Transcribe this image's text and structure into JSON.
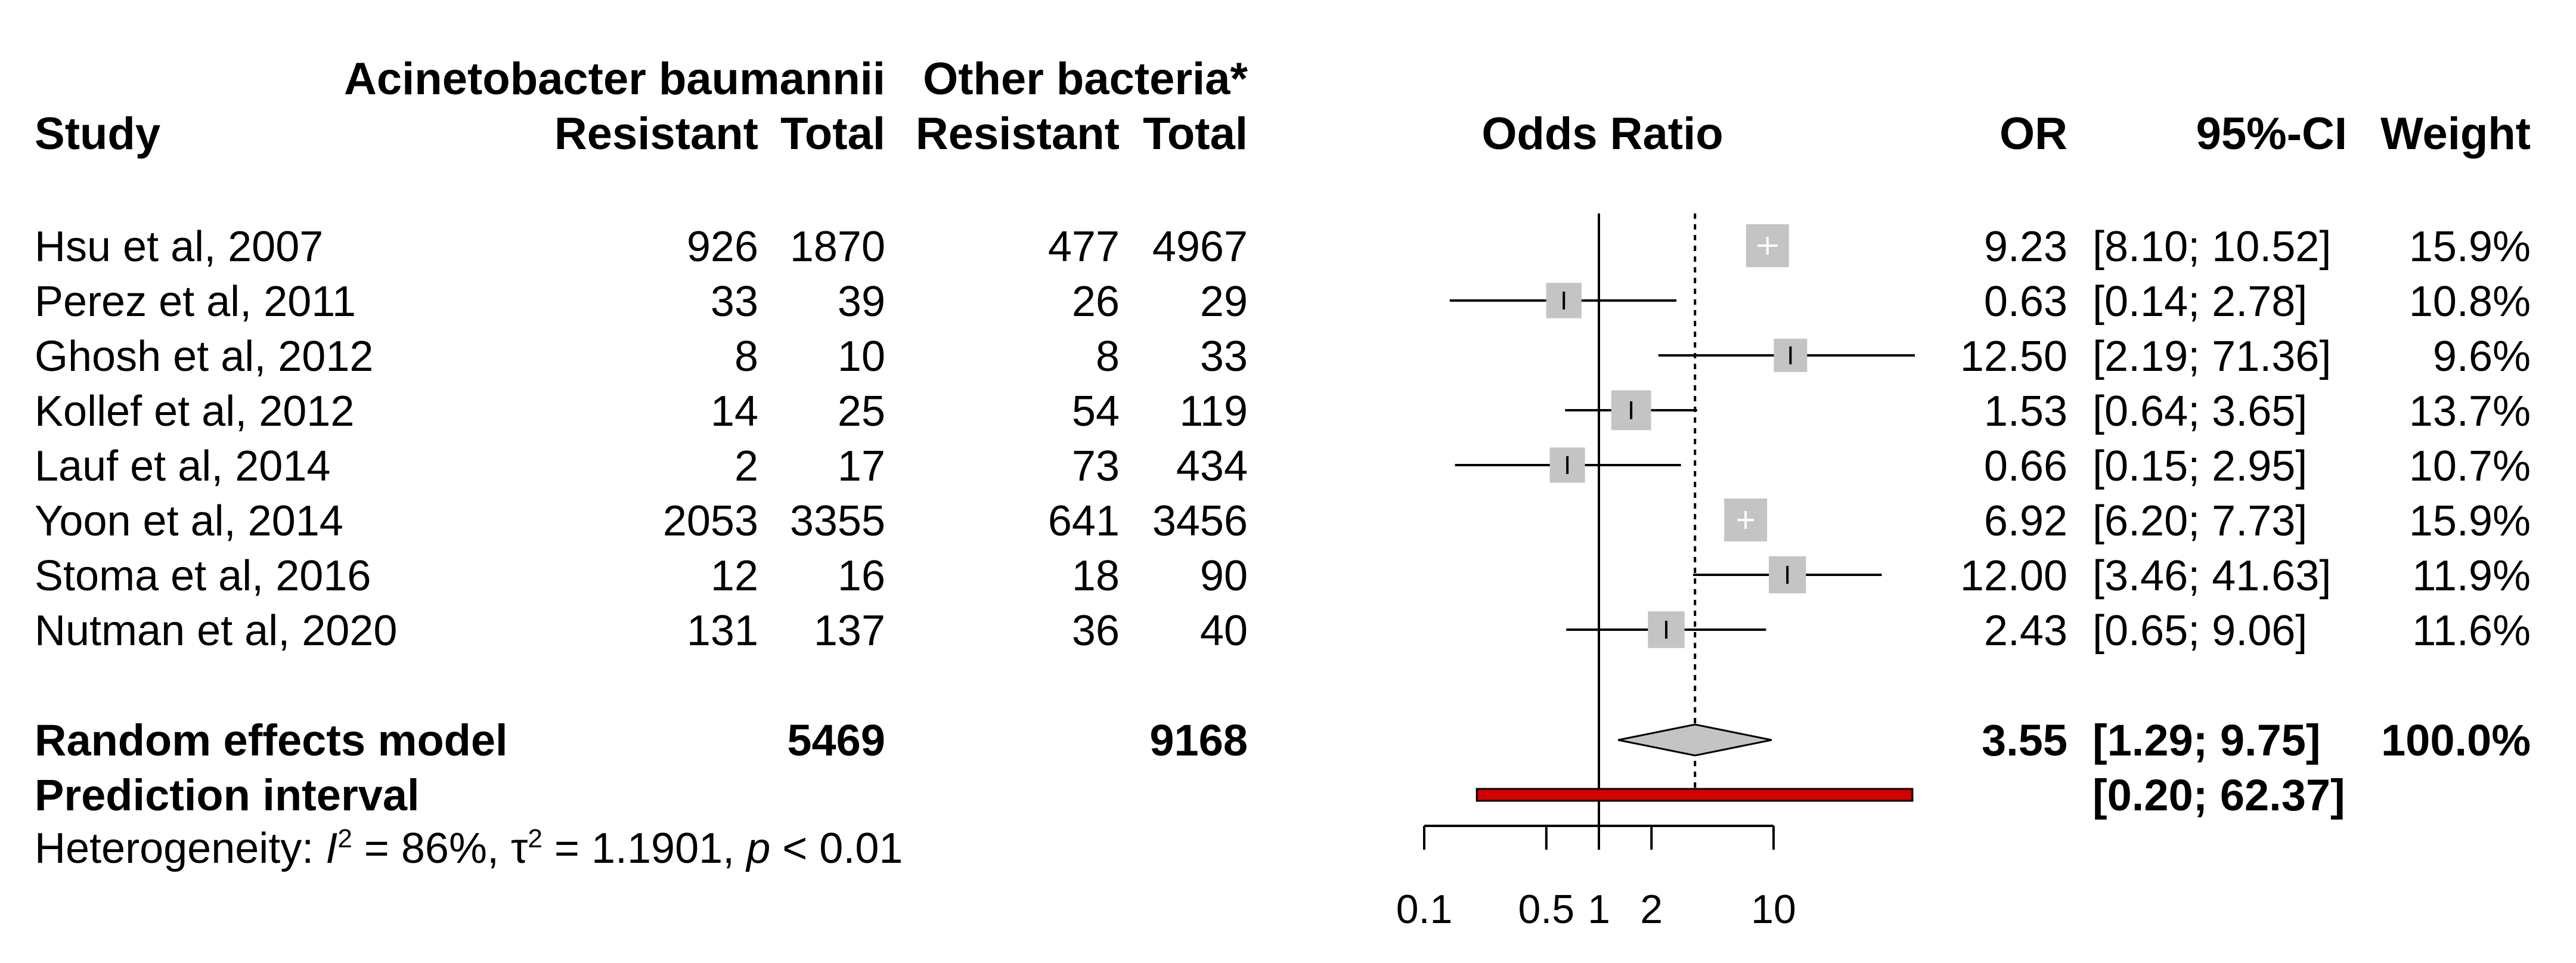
{
  "chart_data": {
    "type": "forest",
    "title": "",
    "xlabel": "Odds Ratio",
    "x_scale": "log",
    "xlim": [
      0.1,
      10
    ],
    "x_ticks": [
      0.1,
      0.5,
      1,
      2,
      10
    ],
    "x_tick_labels": [
      "0.1",
      "0.5",
      "1",
      "2",
      "10"
    ],
    "group_headers": {
      "acinetobacter": "Acinetobacter baumannii",
      "other": "Other bacteria*"
    },
    "column_headers": {
      "study": "Study",
      "ab_resistant": "Resistant",
      "ab_total": "Total",
      "ob_resistant": "Resistant",
      "ob_total": "Total",
      "or": "OR",
      "ci": "95%-CI",
      "weight": "Weight"
    },
    "studies": [
      {
        "study": "Hsu et al, 2007",
        "ab_resistant": "926",
        "ab_total": "1870",
        "ob_resistant": "477",
        "ob_total": "4967",
        "or": 9.23,
        "lower": 8.1,
        "upper": 10.52,
        "or_text": "9.23",
        "ci_text": "[8.10; 10.52]",
        "weight": 15.9,
        "weight_text": "15.9%"
      },
      {
        "study": "Perez et al, 2011",
        "ab_resistant": "33",
        "ab_total": "39",
        "ob_resistant": "26",
        "ob_total": "29",
        "or": 0.63,
        "lower": 0.14,
        "upper": 2.78,
        "or_text": "0.63",
        "ci_text": "[0.14; 2.78]",
        "weight": 10.8,
        "weight_text": "10.8%"
      },
      {
        "study": "Ghosh et al, 2012",
        "ab_resistant": "8",
        "ab_total": "10",
        "ob_resistant": "8",
        "ob_total": "33",
        "or": 12.5,
        "lower": 2.19,
        "upper": 71.36,
        "or_text": "12.50",
        "ci_text": "[2.19; 71.36]",
        "weight": 9.6,
        "weight_text": "9.6%"
      },
      {
        "study": "Kollef et al, 2012",
        "ab_resistant": "14",
        "ab_total": "25",
        "ob_resistant": "54",
        "ob_total": "119",
        "or": 1.53,
        "lower": 0.64,
        "upper": 3.65,
        "or_text": "1.53",
        "ci_text": "[0.64; 3.65]",
        "weight": 13.7,
        "weight_text": "13.7%"
      },
      {
        "study": "Lauf et al, 2014",
        "ab_resistant": "2",
        "ab_total": "17",
        "ob_resistant": "73",
        "ob_total": "434",
        "or": 0.66,
        "lower": 0.15,
        "upper": 2.95,
        "or_text": "0.66",
        "ci_text": "[0.15; 2.95]",
        "weight": 10.7,
        "weight_text": "10.7%"
      },
      {
        "study": "Yoon et al, 2014",
        "ab_resistant": "2053",
        "ab_total": "3355",
        "ob_resistant": "641",
        "ob_total": "3456",
        "or": 6.92,
        "lower": 6.2,
        "upper": 7.73,
        "or_text": "6.92",
        "ci_text": "[6.20; 7.73]",
        "weight": 15.9,
        "weight_text": "15.9%"
      },
      {
        "study": "Stoma et al, 2016",
        "ab_resistant": "12",
        "ab_total": "16",
        "ob_resistant": "18",
        "ob_total": "90",
        "or": 12.0,
        "lower": 3.46,
        "upper": 41.63,
        "or_text": "12.00",
        "ci_text": "[3.46; 41.63]",
        "weight": 11.9,
        "weight_text": "11.9%"
      },
      {
        "study": "Nutman et al, 2020",
        "ab_resistant": "131",
        "ab_total": "137",
        "ob_resistant": "36",
        "ob_total": "40",
        "or": 2.43,
        "lower": 0.65,
        "upper": 9.06,
        "or_text": "2.43",
        "ci_text": "[0.65; 9.06]",
        "weight": 11.6,
        "weight_text": "11.6%"
      }
    ],
    "summary": {
      "label": "Random effects model",
      "ab_total": "5469",
      "ob_total": "9168",
      "or": 3.55,
      "lower": 1.29,
      "upper": 9.75,
      "or_text": "3.55",
      "ci_text": "[1.29; 9.75]",
      "weight_text": "100.0%"
    },
    "prediction": {
      "label": "Prediction interval",
      "lower": 0.2,
      "upper": 62.37,
      "ci_text": "[0.20; 62.37]"
    },
    "heterogeneity": {
      "prefix": "Heterogeneity: ",
      "i2_symbol": "I",
      "i2_value": " = 86%, ",
      "tau2_symbol": "τ",
      "tau2_value": " = 1.1901, ",
      "p_symbol": "p",
      "p_value": " < 0.01"
    },
    "colors": {
      "box_fill": "#c4c4c4",
      "diamond_fill": "#c4c4c4",
      "prediction_fill": "#d40000",
      "line": "#000000"
    }
  }
}
